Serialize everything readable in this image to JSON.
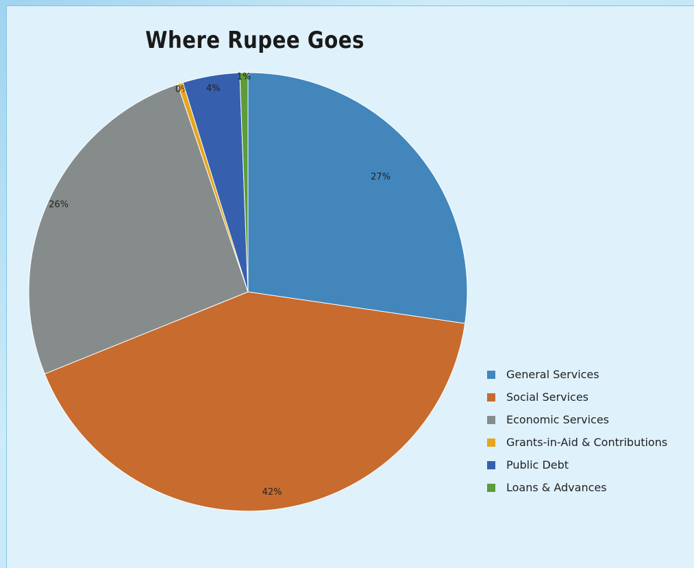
{
  "chart_data": {
    "type": "pie",
    "title": "Where Rupee Goes",
    "slices": [
      {
        "label": "General Services",
        "value": 27.3,
        "display": "27%",
        "color": "#4286bc"
      },
      {
        "label": "Social Services",
        "value": 41.6,
        "display": "42%",
        "color": "#c76b2e"
      },
      {
        "label": "Economic Services",
        "value": 25.9,
        "display": "26%",
        "color": "#868c8c"
      },
      {
        "label": "Grants-in-Aid & Contributions",
        "value": 0.4,
        "display": "0%",
        "color": "#e5a51d"
      },
      {
        "label": "Public Debt",
        "value": 4.2,
        "display": "4%",
        "color": "#3660ad"
      },
      {
        "label": "Loans & Advances",
        "value": 0.6,
        "display": "1%",
        "color": "#5c9c3a"
      }
    ],
    "legend_position": "right"
  }
}
